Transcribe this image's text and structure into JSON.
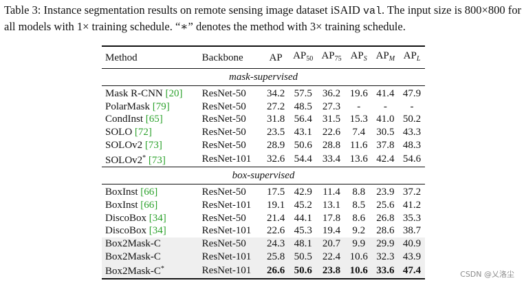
{
  "caption": {
    "part1": "Table 3: Instance segmentation results on remote sensing image dataset iSAID ",
    "code": "val",
    "part2": ". The input size is 800×800 for all models with 1× training schedule. “",
    "star": "∗",
    "part3": "” denotes the method with 3× training schedule."
  },
  "headers": {
    "method": "Method",
    "backbone": "Backbone",
    "ap": "AP",
    "ap50_base": "AP",
    "ap50_sub": "50",
    "ap75_base": "AP",
    "ap75_sub": "75",
    "aps_base": "AP",
    "aps_sub": "S",
    "apm_base": "AP",
    "apm_sub": "M",
    "apl_base": "AP",
    "apl_sub": "L"
  },
  "sections": [
    {
      "title": "mask-supervised",
      "rows": [
        {
          "name": "Mask R-CNN ",
          "ref": "[20]",
          "star": "",
          "backbone": "ResNet-50",
          "values": [
            "34.2",
            "57.5",
            "36.2",
            "19.6",
            "41.4",
            "47.9"
          ]
        },
        {
          "name": "PolarMask ",
          "ref": "[79]",
          "star": "",
          "backbone": "ResNet-50",
          "values": [
            "27.2",
            "48.5",
            "27.3",
            "-",
            "-",
            "-"
          ]
        },
        {
          "name": "CondInst ",
          "ref": "[65]",
          "star": "",
          "backbone": "ResNet-50",
          "values": [
            "31.8",
            "56.4",
            "31.5",
            "15.3",
            "41.0",
            "50.2"
          ]
        },
        {
          "name": "SOLO ",
          "ref": "[72]",
          "star": "",
          "backbone": "ResNet-50",
          "values": [
            "23.5",
            "43.1",
            "22.6",
            "7.4",
            "30.5",
            "43.3"
          ]
        },
        {
          "name": "SOLOv2 ",
          "ref": "[73]",
          "star": "",
          "backbone": "ResNet-50",
          "values": [
            "28.9",
            "50.6",
            "28.8",
            "11.6",
            "37.8",
            "48.3"
          ]
        },
        {
          "name": "SOLOv2",
          "ref": "[73]",
          "star": "*",
          "backbone": "ResNet-101",
          "values": [
            "32.6",
            "54.4",
            "33.4",
            "13.6",
            "42.4",
            "54.6"
          ]
        }
      ]
    },
    {
      "title": "box-supervised",
      "rows": [
        {
          "name": "BoxInst ",
          "ref": "[66]",
          "star": "",
          "backbone": "ResNet-50",
          "values": [
            "17.5",
            "42.9",
            "11.4",
            "8.8",
            "23.9",
            "37.2"
          ]
        },
        {
          "name": "BoxInst ",
          "ref": "[66]",
          "star": "",
          "backbone": "ResNet-101",
          "values": [
            "19.1",
            "45.2",
            "13.1",
            "8.5",
            "25.6",
            "41.2"
          ]
        },
        {
          "name": "DiscoBox ",
          "ref": "[34]",
          "star": "",
          "backbone": "ResNet-50",
          "values": [
            "21.4",
            "44.1",
            "17.8",
            "8.6",
            "26.8",
            "35.3"
          ]
        },
        {
          "name": "DiscoBox ",
          "ref": "[34]",
          "star": "",
          "backbone": "ResNet-101",
          "values": [
            "22.6",
            "45.3",
            "19.4",
            "9.2",
            "28.6",
            "38.7"
          ]
        },
        {
          "name": "Box2Mask-C",
          "ref": "",
          "star": "",
          "backbone": "ResNet-50",
          "values": [
            "24.3",
            "48.1",
            "20.7",
            "9.9",
            "29.9",
            "40.9"
          ]
        },
        {
          "name": "Box2Mask-C",
          "ref": "",
          "star": "",
          "backbone": "ResNet-101",
          "values": [
            "25.8",
            "50.5",
            "22.4",
            "10.6",
            "32.3",
            "43.9"
          ]
        },
        {
          "name": "Box2Mask-C",
          "ref": "",
          "star": "*",
          "backbone": "ResNet-101",
          "values": [
            "26.6",
            "50.6",
            "23.8",
            "10.6",
            "33.6",
            "47.4"
          ]
        }
      ]
    }
  ],
  "watermark": "CSDN @乂洛尘"
}
